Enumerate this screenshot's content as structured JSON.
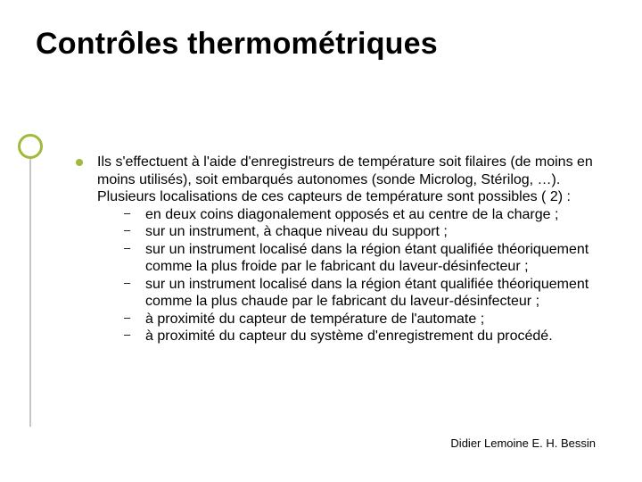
{
  "title": "Contrôles thermométriques",
  "decor": {
    "circle_color": "#9fba3c",
    "line_color": "#c6c6c6"
  },
  "bullet_color": "#9fba3c",
  "intro": "Ils s'effectuent à l'aide d'enregistreurs de température soit filaires (de moins en moins utilisés), soit embarqués autonomes (sonde Microlog, Stérilog, …). Plusieurs localisations de ces capteurs de température sont possibles ( 2) :",
  "items": [
    "en deux coins diagonalement opposés et au centre de la charge ;",
    "sur un instrument, à chaque niveau du support ;",
    "sur un instrument localisé dans la région étant qualifiée théoriquement comme la plus froide par le fabricant du laveur-désinfecteur ;",
    "sur un instrument localisé dans la région étant qualifiée théoriquement comme la plus chaude par le fabricant du laveur-désinfecteur ;",
    "à proximité du capteur de température de l'automate ;",
    "à proximité du capteur du système d'enregistrement du procédé."
  ],
  "footer": "Didier Lemoine E. H. Bessin"
}
